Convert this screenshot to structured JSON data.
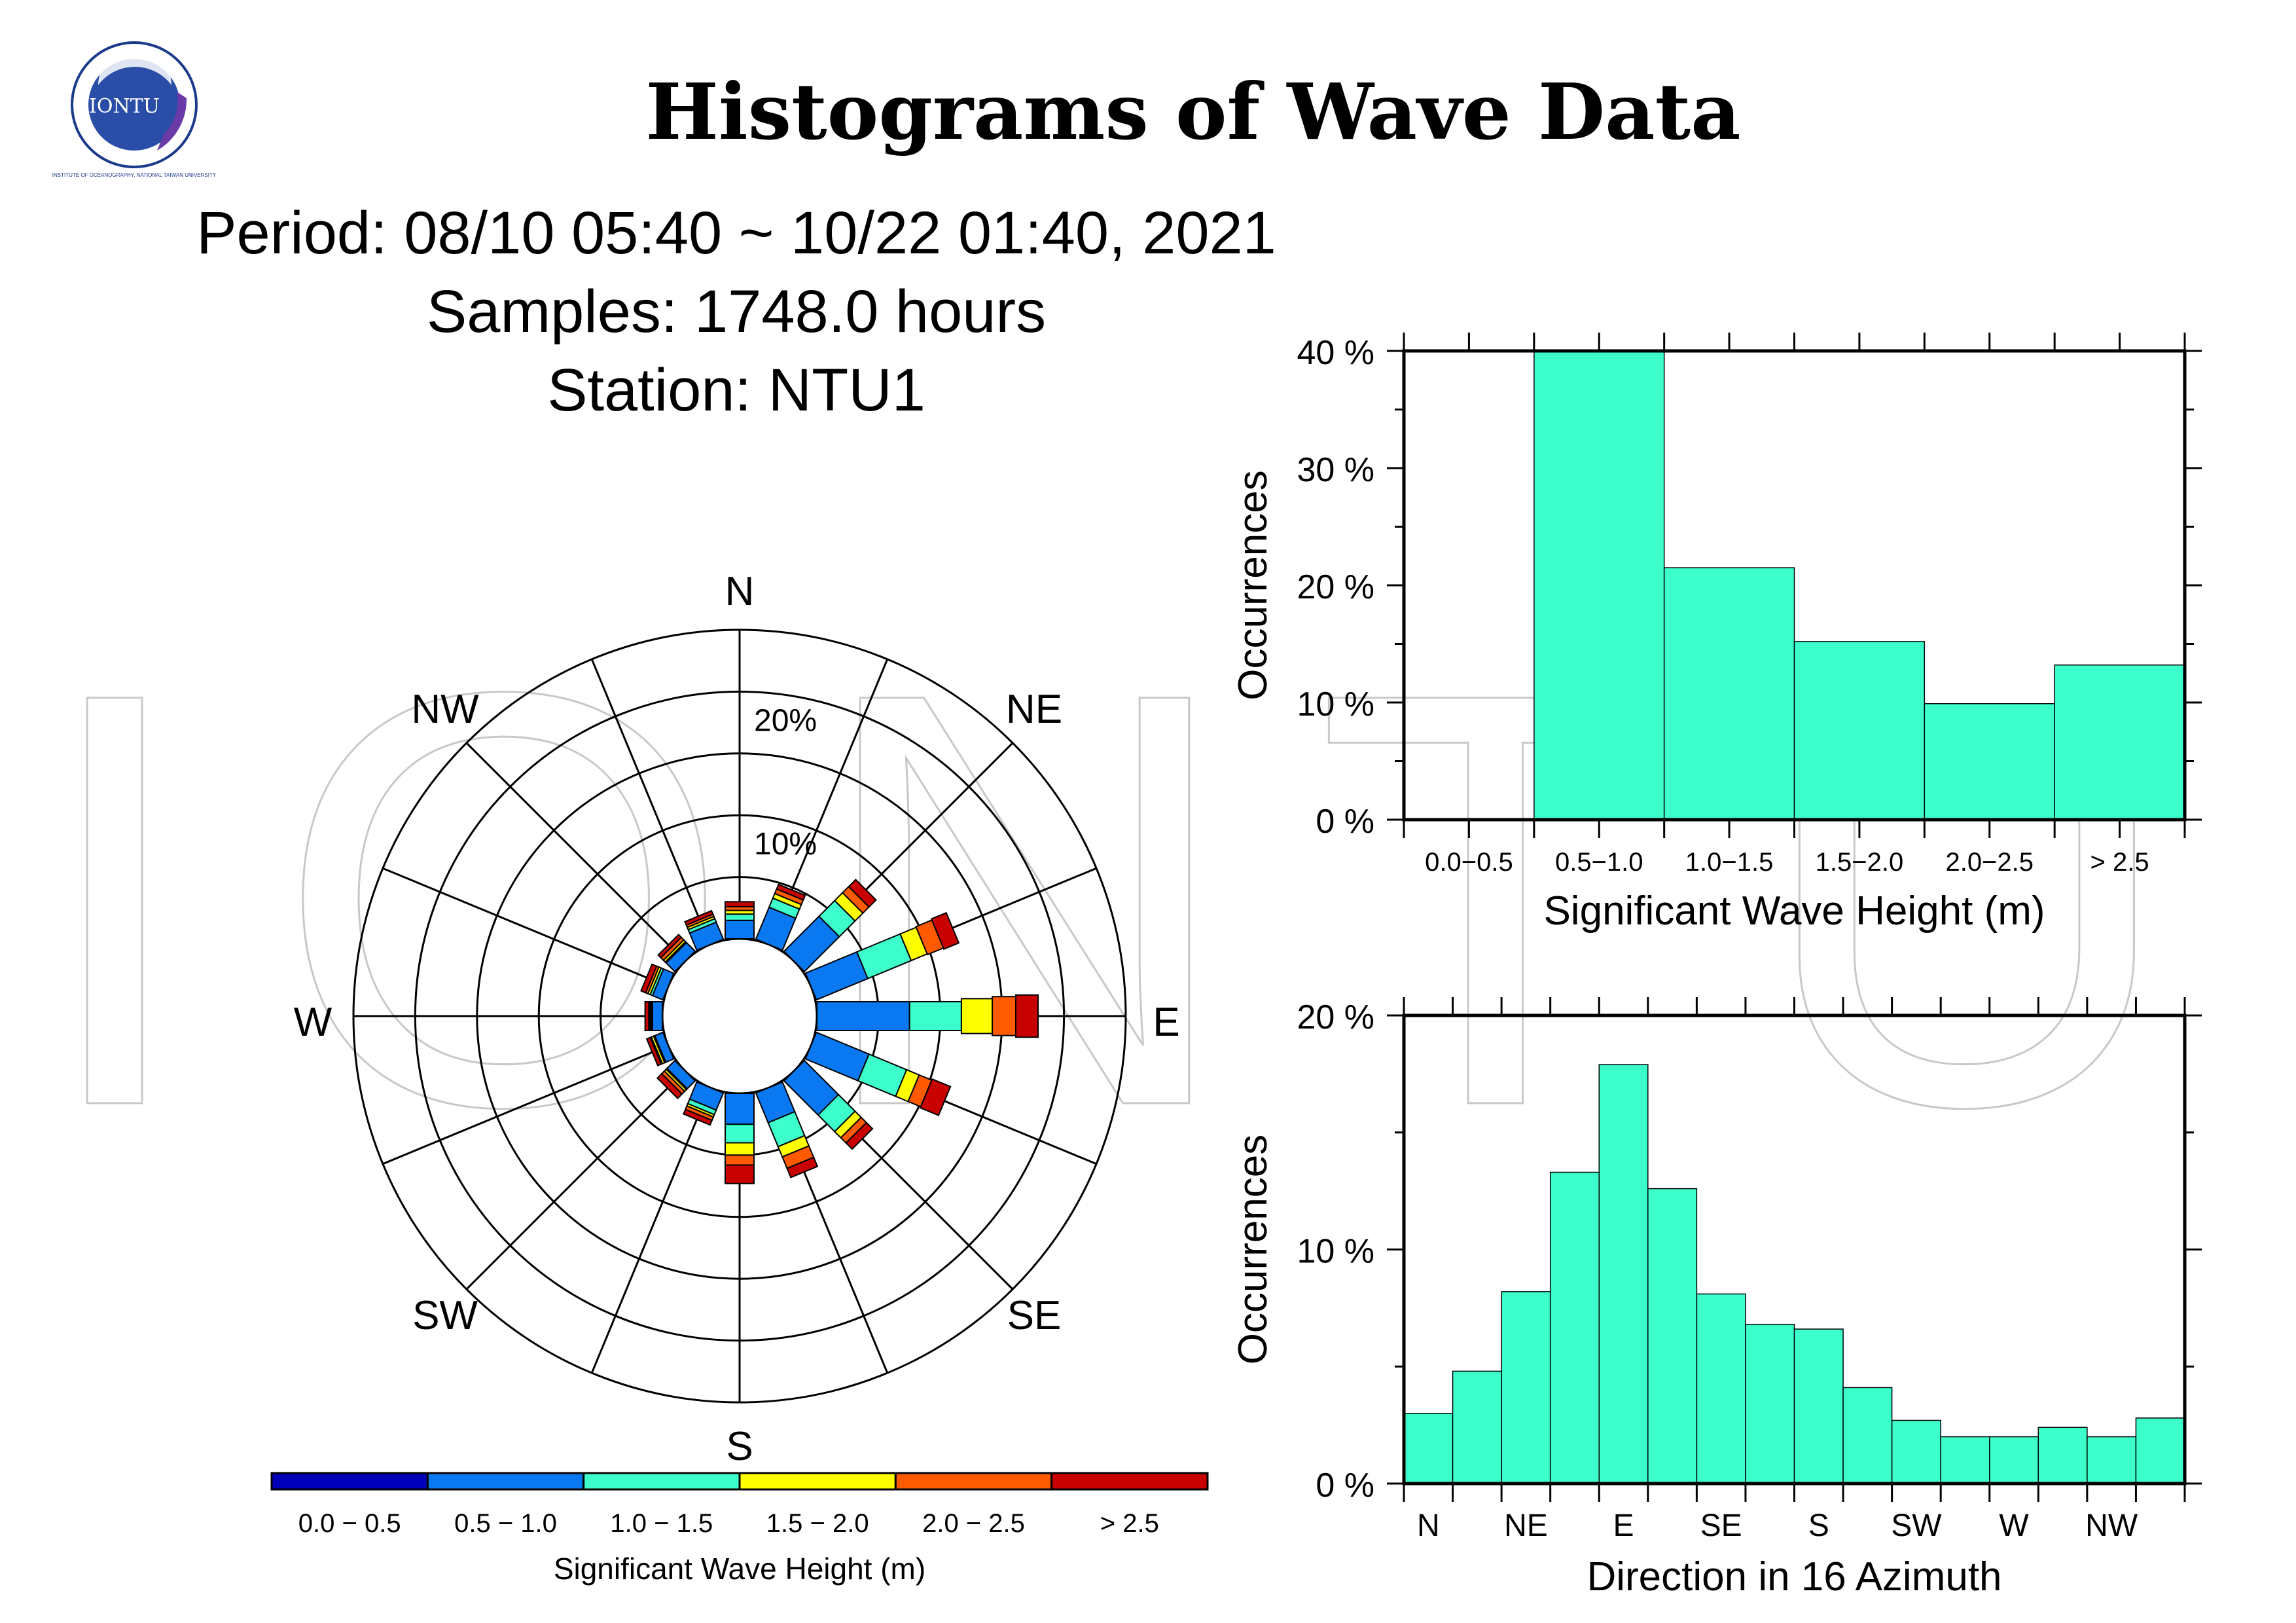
{
  "header": {
    "logo_text": "IONTU",
    "logo_ring_text": "INSTITUTE OF OCEANOGRAPHY, NATIONAL TAIWAN UNIVERSITY",
    "title": "Histograms of Wave Data",
    "period": "Period: 08/10 05:40 ~ 10/22 01:40, 2021",
    "samples": "Samples: 1748.0 hours",
    "station": "Station: NTU1",
    "watermark": "IONTU"
  },
  "colors": {
    "bar_fill": "#3CFFCC",
    "bin_colors": [
      "#0000BB",
      "#0A78F0",
      "#3CFFCC",
      "#FFFF00",
      "#FF5A00",
      "#C80000"
    ]
  },
  "chart_data": [
    {
      "type": "rose",
      "compass_labels": [
        "N",
        "NE",
        "E",
        "SE",
        "S",
        "SW",
        "W",
        "NW"
      ],
      "ring_labels": [
        "10%",
        "20%"
      ],
      "rmax_percent": 25,
      "bins": [
        "0.0 − 0.5",
        "0.5 − 1.0",
        "1.0 − 1.5",
        "1.5 − 2.0",
        "2.0 − 2.5",
        "> 2.5"
      ],
      "legend_title": "Significant Wave Height (m)",
      "directions": [
        "N",
        "NNE",
        "NE",
        "ENE",
        "E",
        "ESE",
        "SE",
        "SSE",
        "S",
        "SSW",
        "SW",
        "WSW",
        "W",
        "WNW",
        "NW",
        "NNW"
      ],
      "values": [
        [
          0,
          1.5,
          0.5,
          0.3,
          0.3,
          0.4
        ],
        [
          0,
          2.8,
          0.8,
          0.4,
          0.4,
          0.4
        ],
        [
          0,
          4.0,
          1.8,
          0.9,
          0.7,
          0.8
        ],
        [
          0,
          4.5,
          3.8,
          1.4,
          1.4,
          1.3
        ],
        [
          0,
          7.5,
          4.2,
          2.5,
          1.9,
          1.8
        ],
        [
          0,
          4.6,
          3.3,
          1.1,
          1.1,
          1.6
        ],
        [
          0,
          3.9,
          1.9,
          0.7,
          0.6,
          0.7
        ],
        [
          0,
          2.6,
          2.1,
          0.9,
          1.0,
          0.8
        ],
        [
          0,
          2.5,
          1.5,
          1.0,
          0.8,
          1.5
        ],
        [
          0,
          1.5,
          0.4,
          0.2,
          0.3,
          0.4
        ],
        [
          0,
          0.9,
          0.1,
          0.2,
          0.3,
          0.5
        ],
        [
          0,
          0.7,
          0.1,
          0.2,
          0.1,
          0.3
        ],
        [
          0,
          0.8,
          0.1,
          0.1,
          0.1,
          0.3
        ],
        [
          0,
          0.9,
          0.2,
          0.2,
          0.2,
          0.4
        ],
        [
          0,
          1.0,
          0.1,
          0.2,
          0.3,
          0.3
        ],
        [
          0,
          1.5,
          0.3,
          0.2,
          0.2,
          0.3
        ]
      ]
    },
    {
      "type": "bar",
      "categories": [
        "0.0−0.5",
        "0.5−1.0",
        "1.0−1.5",
        "1.5−2.0",
        "2.0−2.5",
        "> 2.5"
      ],
      "values": [
        0,
        40,
        21.5,
        15.2,
        9.9,
        13.2
      ],
      "ylim": [
        0,
        40
      ],
      "yticks": [
        0,
        10,
        20,
        30,
        40
      ],
      "ytick_labels": [
        "0 %",
        "10 %",
        "20 %",
        "30 %",
        "40 %"
      ],
      "xlabel": "Significant Wave Height (m)",
      "ylabel": "Occurrences"
    },
    {
      "type": "bar",
      "categories": [
        "N",
        "NNE",
        "NE",
        "ENE",
        "E",
        "ESE",
        "SE",
        "SSE",
        "S",
        "SSW",
        "SW",
        "WSW",
        "W",
        "WNW",
        "NW",
        "NNW"
      ],
      "values": [
        3.0,
        4.8,
        8.2,
        13.3,
        17.9,
        12.6,
        8.1,
        6.8,
        6.6,
        4.1,
        2.7,
        2.0,
        2.0,
        2.4,
        2.0,
        2.8
      ],
      "tick_labels": [
        "N",
        "NE",
        "E",
        "SE",
        "S",
        "SW",
        "W",
        "NW"
      ],
      "ylim": [
        0,
        20
      ],
      "yticks": [
        0,
        10,
        20
      ],
      "ytick_labels": [
        "0 %",
        "10 %",
        "20 %"
      ],
      "xlabel": "Direction in 16 Azimuth",
      "ylabel": "Occurrences"
    }
  ]
}
